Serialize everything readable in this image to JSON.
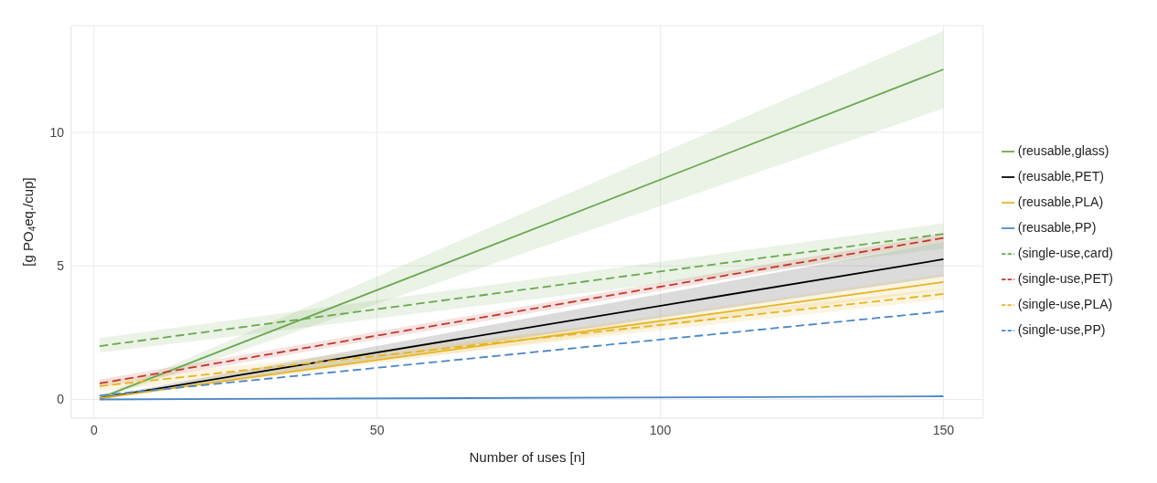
{
  "chart_data": {
    "type": "line",
    "xlabel": "Number of uses [n]",
    "ylabel": "[g PO$_{4}$eq./cup]",
    "x": [
      1,
      150
    ],
    "xlim": [
      -4,
      157
    ],
    "xticks": [
      0,
      50,
      100,
      150
    ],
    "ylim": [
      -0.7,
      14
    ],
    "yticks": [
      0,
      5,
      10
    ],
    "grid": true,
    "legend": "right",
    "series": [
      {
        "name": "(reusable,glass)",
        "color": "#6aa84f",
        "line_style": "solid",
        "values": [
          0.05,
          12.36
        ],
        "lower": [
          0.0,
          10.9
        ],
        "upper": [
          0.1,
          13.8
        ]
      },
      {
        "name": "(reusable,PET)",
        "color": "#000000",
        "line_style": "solid",
        "values": [
          0.05,
          5.25
        ],
        "lower": [
          0.0,
          4.6
        ],
        "upper": [
          0.1,
          5.9
        ]
      },
      {
        "name": "(reusable,PLA)",
        "color": "#e6b422",
        "line_style": "solid",
        "values": [
          0.05,
          4.4
        ],
        "lower": [
          0.0,
          4.1
        ],
        "upper": [
          0.1,
          4.7
        ]
      },
      {
        "name": "(reusable,PP)",
        "color": "#4a86c8",
        "line_style": "solid",
        "values": [
          0.0,
          0.12
        ]
      },
      {
        "name": "(single-use,card)",
        "color": "#6aa84f",
        "line_style": "dashed",
        "values": [
          2.0,
          6.2
        ],
        "lower": [
          1.75,
          5.65
        ],
        "upper": [
          2.3,
          6.6
        ]
      },
      {
        "name": "(single-use,PET)",
        "color": "#c0392b",
        "line_style": "dashed",
        "values": [
          0.6,
          6.05
        ],
        "lower": [
          0.45,
          5.9
        ],
        "upper": [
          0.75,
          6.2
        ]
      },
      {
        "name": "(single-use,PLA)",
        "color": "#e6b422",
        "line_style": "dashed",
        "values": [
          0.5,
          3.95
        ],
        "lower": [
          0.3,
          3.75
        ],
        "upper": [
          0.7,
          4.15
        ]
      },
      {
        "name": "(single-use,PP)",
        "color": "#4a86c8",
        "line_style": "dashed",
        "values": [
          0.15,
          3.3
        ]
      }
    ]
  }
}
